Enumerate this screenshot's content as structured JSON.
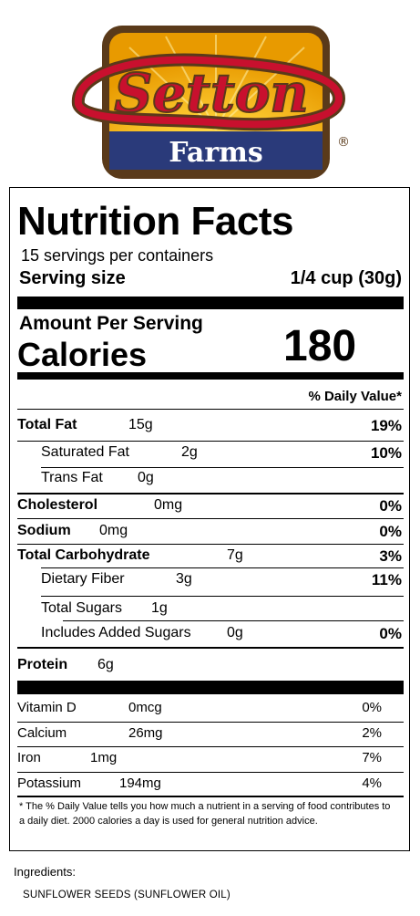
{
  "logo": {
    "brand": "Setton",
    "sub": "Farms",
    "registered": "®",
    "colors": {
      "frame": "#5a3a1a",
      "gold": "#f2b705",
      "navy": "#2a3a7a",
      "red": "#c8102e"
    }
  },
  "label": {
    "title": "Nutrition Facts",
    "servings_per_container": "15 servings per containers",
    "serving_size_label": "Serving size",
    "serving_size_value": "1/4 cup (30g)",
    "amount_per_serving": "Amount Per Serving",
    "calories_label": "Calories",
    "calories_value": "180",
    "daily_value_header": "% Daily Value*",
    "nutrients": {
      "total_fat": {
        "label": "Total Fat",
        "amount": "15g",
        "dv": "19%"
      },
      "saturated_fat": {
        "label": "Saturated Fat",
        "amount": "2g",
        "dv": "10%"
      },
      "trans_fat": {
        "label": "Trans Fat",
        "amount": "0g"
      },
      "cholesterol": {
        "label": "Cholesterol",
        "amount": "0mg",
        "dv": "0%"
      },
      "sodium": {
        "label": "Sodium",
        "amount": "0mg",
        "dv": "0%"
      },
      "total_carbohydrate": {
        "label": "Total Carbohydrate",
        "amount": "7g",
        "dv": "3%"
      },
      "dietary_fiber": {
        "label": "Dietary Fiber",
        "amount": "3g",
        "dv": "11%"
      },
      "total_sugars": {
        "label": "Total Sugars",
        "amount": "1g"
      },
      "added_sugars": {
        "label": "Includes Added Sugars",
        "amount": "0g",
        "dv": "0%"
      },
      "protein": {
        "label": "Protein",
        "amount": "6g"
      }
    },
    "vitamins": [
      {
        "label": "Vitamin D",
        "amount": "0mcg",
        "dv": "0%"
      },
      {
        "label": "Calcium",
        "amount": "26mg",
        "dv": "2%"
      },
      {
        "label": "Iron",
        "amount": "1mg",
        "dv": "7%"
      },
      {
        "label": "Potassium",
        "amount": "194mg",
        "dv": "4%"
      }
    ],
    "footnote": "* The % Daily Value tells you how much a nutrient in a serving of food contributes to a daily diet. 2000 calories a day is used for general nutrition advice."
  },
  "ingredients": {
    "title": "Ingredients:",
    "text": "SUNFLOWER SEEDS (SUNFLOWER OIL)"
  }
}
